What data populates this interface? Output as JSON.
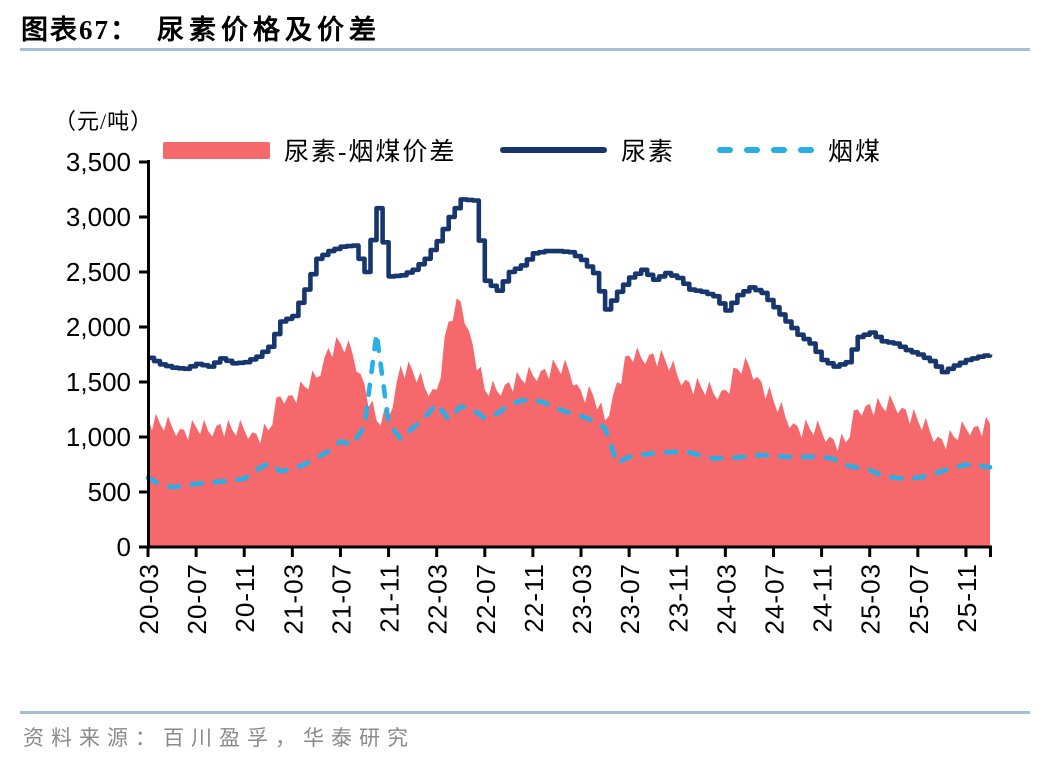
{
  "title": {
    "prefix": "图表67：",
    "text": "尿素价格及价差"
  },
  "footer": {
    "source_label": "资料来源：百川盈孚，华泰研究"
  },
  "legend": [
    {
      "label": "尿素-烟煤价差",
      "type": "area",
      "series_key": "spread"
    },
    {
      "label": "尿素",
      "type": "line",
      "series_key": "urea"
    },
    {
      "label": "烟煤",
      "type": "dashed-line",
      "series_key": "coal"
    }
  ],
  "colors": {
    "spread": "#F5696D",
    "urea": "#17366D",
    "coal": "#29AEE5",
    "divider": "#A4C0D8",
    "footer_text": "#8A8A8A",
    "axis": "#000000"
  },
  "chart_data": {
    "type": "area+line combo",
    "unit": "（元/吨）",
    "ylim": [
      0,
      3500
    ],
    "ytick_step": 500,
    "grid": false,
    "legend_position": "top",
    "x": [
      "20-03",
      "20-04",
      "20-05",
      "20-06",
      "20-07",
      "20-08",
      "20-09",
      "20-10",
      "20-11",
      "20-12",
      "21-01",
      "21-02",
      "21-03",
      "21-04",
      "21-05",
      "21-06",
      "21-07",
      "21-08",
      "21-09",
      "21-10",
      "21-11",
      "21-12",
      "22-01",
      "22-02",
      "22-03",
      "22-04",
      "22-05",
      "22-06",
      "22-07",
      "22-08",
      "22-09",
      "22-10",
      "22-11",
      "22-12",
      "23-01",
      "23-02",
      "23-03",
      "23-04",
      "23-05",
      "23-06",
      "23-07",
      "23-08",
      "23-09",
      "23-10",
      "23-11",
      "23-12",
      "24-01",
      "24-02",
      "24-03",
      "24-04",
      "24-05",
      "24-06",
      "24-07",
      "24-08",
      "24-09",
      "24-10",
      "24-11",
      "24-12",
      "25-01",
      "25-02",
      "25-03",
      "25-04",
      "25-05",
      "25-06",
      "25-07",
      "25-08",
      "25-09",
      "25-10",
      "25-11",
      "25-12",
      "26-01"
    ],
    "x_tick_labels": [
      "20-03",
      "20-07",
      "20-11",
      "21-03",
      "21-07",
      "21-11",
      "22-03",
      "22-07",
      "22-11",
      "23-03",
      "23-07",
      "23-11",
      "24-03",
      "24-07",
      "24-11",
      "25-03",
      "25-07",
      "25-11"
    ],
    "series": [
      {
        "name": "尿素-烟煤价差",
        "type": "area",
        "color_key": "spread",
        "values": [
          1180,
          1120,
          1090,
          1065,
          1090,
          1055,
          1120,
          1065,
          1065,
          1030,
          1060,
          1370,
          1380,
          1460,
          1540,
          1810,
          1850,
          1760,
          1480,
          1150,
          1180,
          1650,
          1600,
          1450,
          1430,
          2050,
          2230,
          1840,
          1430,
          1420,
          1500,
          1530,
          1560,
          1620,
          1640,
          1600,
          1420,
          1380,
          1150,
          1500,
          1740,
          1720,
          1760,
          1700,
          1560,
          1500,
          1450,
          1400,
          1430,
          1620,
          1640,
          1500,
          1330,
          1180,
          1100,
          1080,
          1050,
          980,
          950,
          1250,
          1300,
          1280,
          1300,
          1250,
          1150,
          1050,
          980,
          1000,
          1080,
          1100,
          1120
        ]
      },
      {
        "name": "尿素",
        "type": "line",
        "color_key": "urea",
        "values": [
          1720,
          1660,
          1630,
          1620,
          1665,
          1640,
          1715,
          1670,
          1680,
          1730,
          1820,
          2050,
          2100,
          2340,
          2620,
          2690,
          2730,
          2740,
          2500,
          3080,
          2460,
          2470,
          2520,
          2620,
          2780,
          3000,
          3160,
          3150,
          2420,
          2330,
          2500,
          2560,
          2670,
          2690,
          2690,
          2680,
          2610,
          2490,
          2160,
          2320,
          2450,
          2520,
          2430,
          2490,
          2445,
          2340,
          2320,
          2280,
          2150,
          2290,
          2360,
          2310,
          2180,
          2050,
          1930,
          1850,
          1700,
          1640,
          1680,
          1910,
          1950,
          1870,
          1850,
          1790,
          1750,
          1690,
          1590,
          1650,
          1700,
          1730,
          1750
        ]
      },
      {
        "name": "烟煤",
        "type": "dashed-line",
        "color_key": "coal",
        "values": [
          630,
          570,
          545,
          555,
          575,
          585,
          595,
          605,
          620,
          700,
          760,
          690,
          705,
          750,
          810,
          870,
          960,
          930,
          1100,
          1940,
          1130,
          980,
          1080,
          1180,
          1300,
          1160,
          1280,
          1250,
          1170,
          1210,
          1290,
          1330,
          1340,
          1310,
          1260,
          1220,
          1190,
          1150,
          1080,
          760,
          820,
          840,
          850,
          860,
          865,
          860,
          830,
          805,
          810,
          815,
          825,
          835,
          830,
          820,
          818,
          820,
          822,
          800,
          745,
          720,
          700,
          650,
          630,
          620,
          630,
          650,
          690,
          720,
          750,
          740,
          725
        ]
      }
    ]
  }
}
